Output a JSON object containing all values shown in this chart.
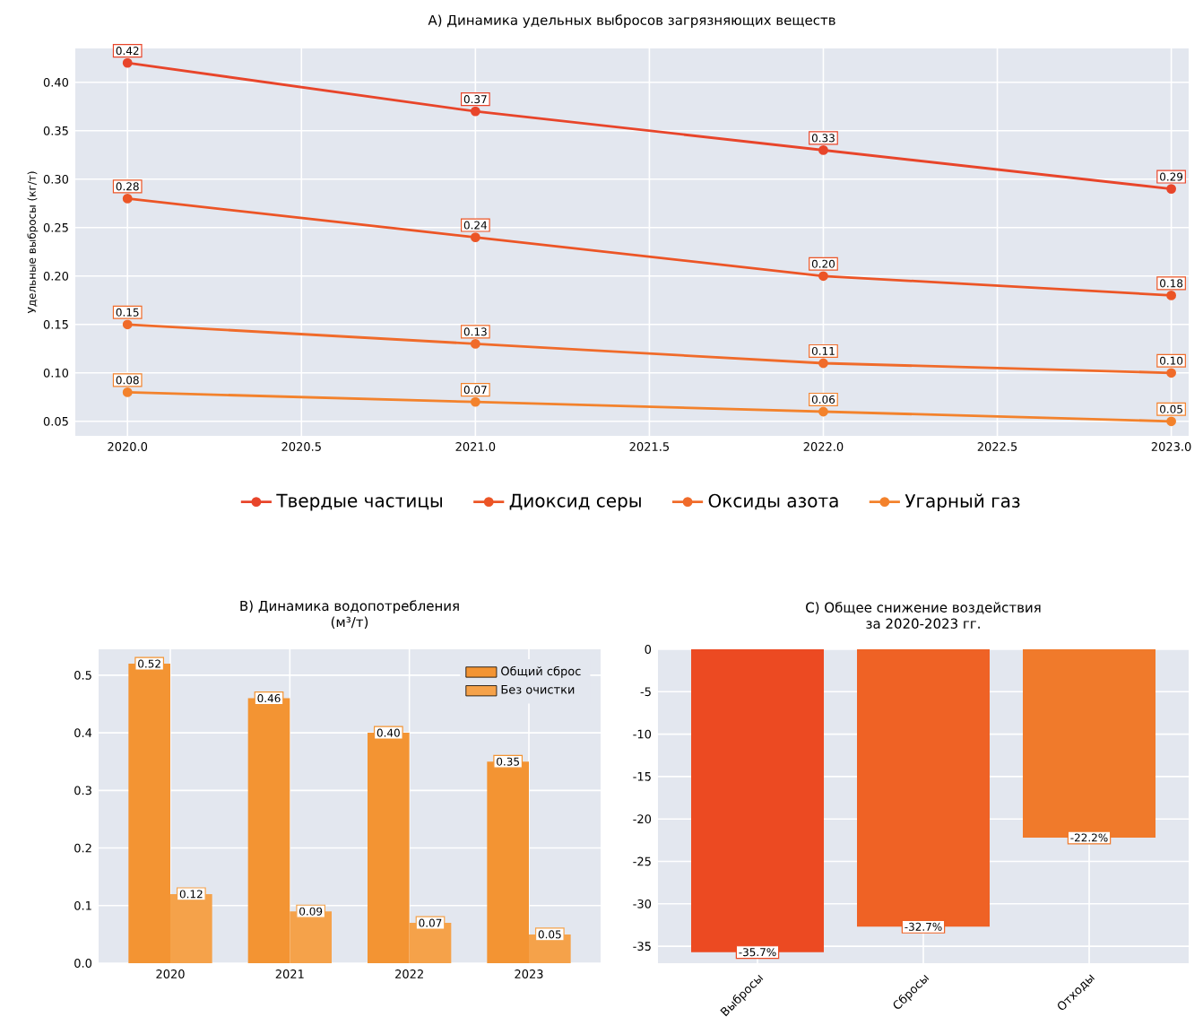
{
  "chart_data": [
    {
      "type": "line",
      "title": "A) Динамика удельных выбросов загрязняющих веществ",
      "ylabel": "Удельные выбросы (кг/т)",
      "x": [
        2020,
        2021,
        2022,
        2023
      ],
      "series": [
        {
          "name": "Твердые частицы",
          "color": "#e8452a",
          "values": [
            0.42,
            0.37,
            0.33,
            0.29
          ],
          "value_labels": [
            "0.42",
            "0.37",
            "0.33",
            "0.29"
          ]
        },
        {
          "name": "Диоксид серы",
          "color": "#ec5526",
          "values": [
            0.28,
            0.24,
            0.2,
            0.18
          ],
          "value_labels": [
            "0.28",
            "0.24",
            "0.20",
            "0.18"
          ]
        },
        {
          "name": "Оксиды азота",
          "color": "#f06b2a",
          "values": [
            0.15,
            0.13,
            0.11,
            0.1
          ],
          "value_labels": [
            "0.15",
            "0.13",
            "0.11",
            "0.10"
          ]
        },
        {
          "name": "Угарный газ",
          "color": "#f3822c",
          "values": [
            0.08,
            0.07,
            0.06,
            0.05
          ],
          "value_labels": [
            "0.08",
            "0.07",
            "0.06",
            "0.05"
          ]
        }
      ],
      "xlim": [
        2019.85,
        2023.05
      ],
      "xticks": [
        {
          "value": 2020,
          "label": "2020.0"
        },
        {
          "value": 2020.5,
          "label": "2020.5"
        },
        {
          "value": 2021,
          "label": "2021.0"
        },
        {
          "value": 2021.5,
          "label": "2021.5"
        },
        {
          "value": 2022,
          "label": "2022.0"
        },
        {
          "value": 2022.5,
          "label": "2022.5"
        },
        {
          "value": 2023,
          "label": "2023.0"
        }
      ],
      "ylim": [
        0.035,
        0.435
      ],
      "yticks": [
        {
          "value": 0.05,
          "label": "0.05"
        },
        {
          "value": 0.1,
          "label": "0.10"
        },
        {
          "value": 0.15,
          "label": "0.15"
        },
        {
          "value": 0.2,
          "label": "0.20"
        },
        {
          "value": 0.25,
          "label": "0.25"
        },
        {
          "value": 0.3,
          "label": "0.30"
        },
        {
          "value": 0.35,
          "label": "0.35"
        },
        {
          "value": 0.4,
          "label": "0.40"
        }
      ],
      "grid": true,
      "legend": "bottom",
      "marker": "circle",
      "line_style": "solid"
    },
    {
      "type": "bar",
      "title": "B) Динамика водопотребления",
      "subtitle": "(м³/т)",
      "categories": [
        "2020",
        "2021",
        "2022",
        "2023"
      ],
      "series": [
        {
          "name": "Общий сброс",
          "color": "#f39433",
          "values": [
            0.52,
            0.46,
            0.4,
            0.35
          ],
          "value_labels": [
            "0.52",
            "0.46",
            "0.40",
            "0.35"
          ]
        },
        {
          "name": "Без очистки",
          "color": "#f5a24a",
          "values": [
            0.12,
            0.09,
            0.07,
            0.05
          ],
          "value_labels": [
            "0.12",
            "0.09",
            "0.07",
            "0.05"
          ]
        }
      ],
      "ylim": [
        0,
        0.545
      ],
      "yticks": [
        {
          "value": 0,
          "label": "0.0"
        },
        {
          "value": 0.1,
          "label": "0.1"
        },
        {
          "value": 0.2,
          "label": "0.2"
        },
        {
          "value": 0.3,
          "label": "0.3"
        },
        {
          "value": 0.4,
          "label": "0.4"
        },
        {
          "value": 0.5,
          "label": "0.5"
        }
      ],
      "grid": true,
      "legend": "top right"
    },
    {
      "type": "bar",
      "title": "C) Общее снижение воздействия",
      "subtitle": "за 2020-2023 гг.",
      "categories": [
        "Выбросы",
        "Сбросы",
        "Отходы"
      ],
      "values": [
        -35.7,
        -32.7,
        -22.2
      ],
      "colors": [
        "#ec4a22",
        "#ef6225",
        "#f07a2b"
      ],
      "value_labels": [
        "-35.7%",
        "-32.7%",
        "-22.2%"
      ],
      "ylim": [
        -37,
        0
      ],
      "yticks": [
        -35,
        -30,
        -25,
        -20,
        -15,
        -10,
        -5,
        0
      ],
      "grid": true
    }
  ]
}
